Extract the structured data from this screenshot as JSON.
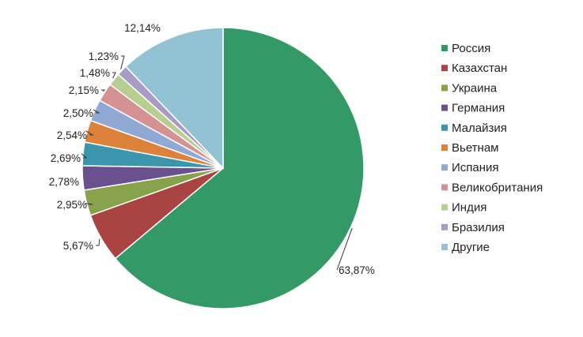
{
  "chart_data": {
    "type": "pie",
    "start": "top",
    "direction": "clockwise",
    "legend_position": "right",
    "categories": [
      "Россия",
      "Казахстан",
      "Украина",
      "Германия",
      "Малайзия",
      "Вьетнам",
      "Испания",
      "Великобритания",
      "Индия",
      "Бразилия",
      "Другие"
    ],
    "values": [
      63.87,
      5.67,
      2.95,
      2.78,
      2.69,
      2.54,
      2.5,
      2.15,
      1.48,
      1.23,
      12.14
    ],
    "labels": [
      "63,87%",
      "5,67%",
      "2,95%",
      "2,78%",
      "2,69%",
      "2,54%",
      "2,50%",
      "2,15%",
      "1,48%",
      "1,23%",
      "12,14%"
    ],
    "colors": [
      "#339966",
      "#a94442",
      "#86a24a",
      "#6b5090",
      "#3a95ad",
      "#dc823a",
      "#8fa8d4",
      "#d49392",
      "#b6cf91",
      "#a89cc6",
      "#92c3d4"
    ]
  }
}
